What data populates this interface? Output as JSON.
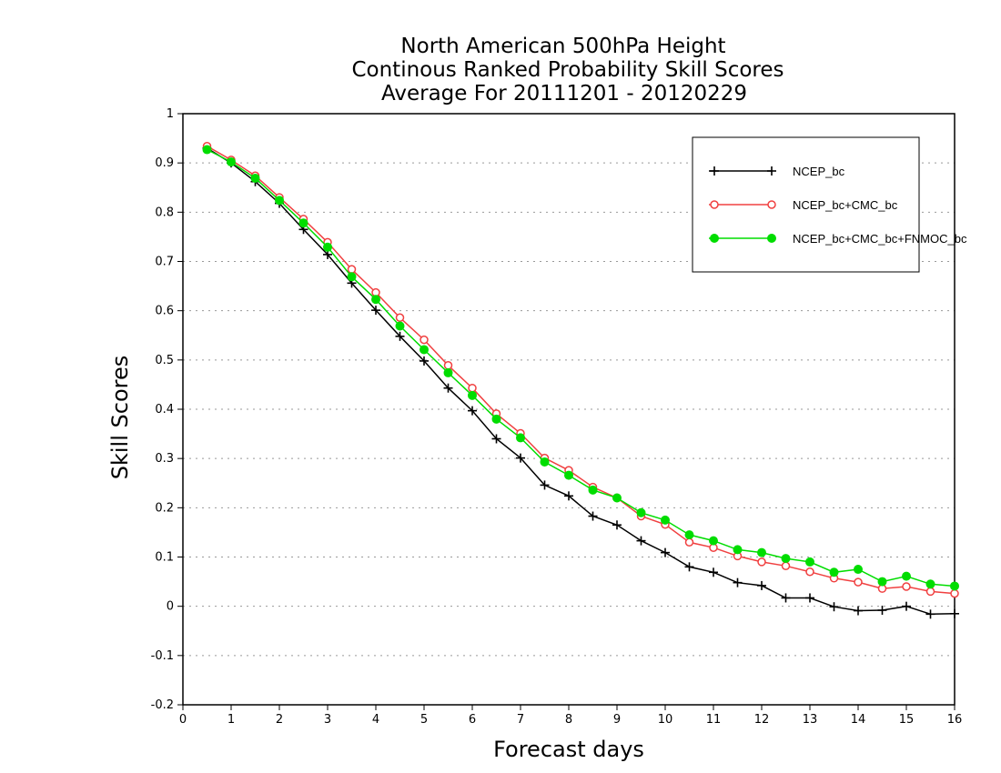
{
  "chart_data": {
    "type": "line",
    "title_lines": [
      "North American 500hPa Height",
      "Continous Ranked Probability Skill Scores",
      "Average For 20111201 - 20120229"
    ],
    "xlabel": "Forecast days",
    "ylabel": "Skill Scores",
    "xlim": [
      0,
      16
    ],
    "ylim": [
      -0.2,
      1
    ],
    "x_ticks": [
      "0",
      "1",
      "2",
      "3",
      "4",
      "5",
      "6",
      "7",
      "8",
      "9",
      "10",
      "11",
      "12",
      "13",
      "14",
      "15",
      "16"
    ],
    "y_ticks": [
      "-0.2",
      "-0.1",
      "0",
      "0.1",
      "0.2",
      "0.3",
      "0.4",
      "0.5",
      "0.6",
      "0.7",
      "0.8",
      "0.9",
      "1"
    ],
    "grid": true,
    "legend_position": "top-right",
    "x": [
      0.5,
      1,
      1.5,
      2,
      2.5,
      3,
      3.5,
      4,
      4.5,
      5,
      5.5,
      6,
      6.5,
      7,
      7.5,
      8,
      8.5,
      9,
      9.5,
      10,
      10.5,
      11,
      11.5,
      12,
      12.5,
      13,
      13.5,
      14,
      14.5,
      15,
      15.5,
      16
    ],
    "series": [
      {
        "name": "NCEP_bc",
        "color": "#000000",
        "marker": "plus",
        "values": [
          0.93,
          0.9,
          0.862,
          0.818,
          0.765,
          0.714,
          0.656,
          0.601,
          0.548,
          0.498,
          0.443,
          0.397,
          0.34,
          0.301,
          0.246,
          0.224,
          0.183,
          0.165,
          0.133,
          0.109,
          0.08,
          0.069,
          0.048,
          0.042,
          0.017,
          0.017,
          -0.001,
          -0.009,
          -0.008,
          0.0,
          -0.016,
          -0.015
        ]
      },
      {
        "name": "NCEP_bc+CMC_bc",
        "color": "#f04040",
        "marker": "open-circle",
        "values": [
          0.934,
          0.906,
          0.874,
          0.83,
          0.786,
          0.739,
          0.684,
          0.637,
          0.586,
          0.541,
          0.489,
          0.443,
          0.391,
          0.351,
          0.301,
          0.276,
          0.242,
          0.22,
          0.183,
          0.166,
          0.13,
          0.119,
          0.102,
          0.09,
          0.082,
          0.07,
          0.057,
          0.049,
          0.036,
          0.04,
          0.03,
          0.026
        ]
      },
      {
        "name": "NCEP_bc+CMC_bc+FNMOC_bc",
        "color": "#00dd00",
        "marker": "filled-circle",
        "values": [
          0.927,
          0.902,
          0.869,
          0.824,
          0.778,
          0.729,
          0.669,
          0.623,
          0.569,
          0.521,
          0.474,
          0.428,
          0.38,
          0.342,
          0.293,
          0.266,
          0.236,
          0.22,
          0.19,
          0.175,
          0.145,
          0.133,
          0.115,
          0.109,
          0.097,
          0.09,
          0.069,
          0.075,
          0.05,
          0.061,
          0.045,
          0.041
        ]
      }
    ]
  }
}
